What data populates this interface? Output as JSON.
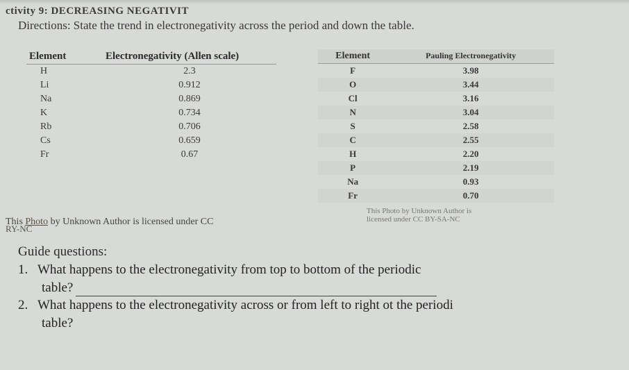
{
  "activity_partial": "ctivity 9: DECREASING NEGATIVIT",
  "directions": "Directions: State the trend in electronegativity across the period and down the table.",
  "left_table": {
    "headers": [
      "Element",
      "Electronegativity (Allen scale)"
    ],
    "rows": [
      [
        "H",
        "2.3"
      ],
      [
        "Li",
        "0.912"
      ],
      [
        "Na",
        "0.869"
      ],
      [
        "K",
        "0.734"
      ],
      [
        "Rb",
        "0.706"
      ],
      [
        "Cs",
        "0.659"
      ],
      [
        "Fr",
        "0.67"
      ]
    ]
  },
  "right_table": {
    "headers": [
      "Element",
      "Pauling Electronegativity"
    ],
    "rows": [
      [
        "F",
        "3.98"
      ],
      [
        "O",
        "3.44"
      ],
      [
        "Cl",
        "3.16"
      ],
      [
        "N",
        "3.04"
      ],
      [
        "S",
        "2.58"
      ],
      [
        "C",
        "2.55"
      ],
      [
        "H",
        "2.20"
      ],
      [
        "P",
        "2.19"
      ],
      [
        "Na",
        "0.93"
      ],
      [
        "Fr",
        "0.70"
      ]
    ]
  },
  "credit1_pre": "This ",
  "credit1_link": "Photo",
  "credit1_post": " by Unknown Author is licensed under CC",
  "credit2a": "This Photo by Unknown Author is",
  "credit2b": "licensed under CC BY-SA-NC",
  "ryne": "RY-NC",
  "guide_heading": "Guide questions:",
  "q1_num": "1.",
  "q1_text_a": "What happens to the electronegativity from top to bottom of the periodic",
  "q1_text_b": "table?",
  "q2_num": "2.",
  "q2_text_a": "What happens to the electronegativity across or from left to right ot the periodi",
  "q2_text_b": "table?"
}
